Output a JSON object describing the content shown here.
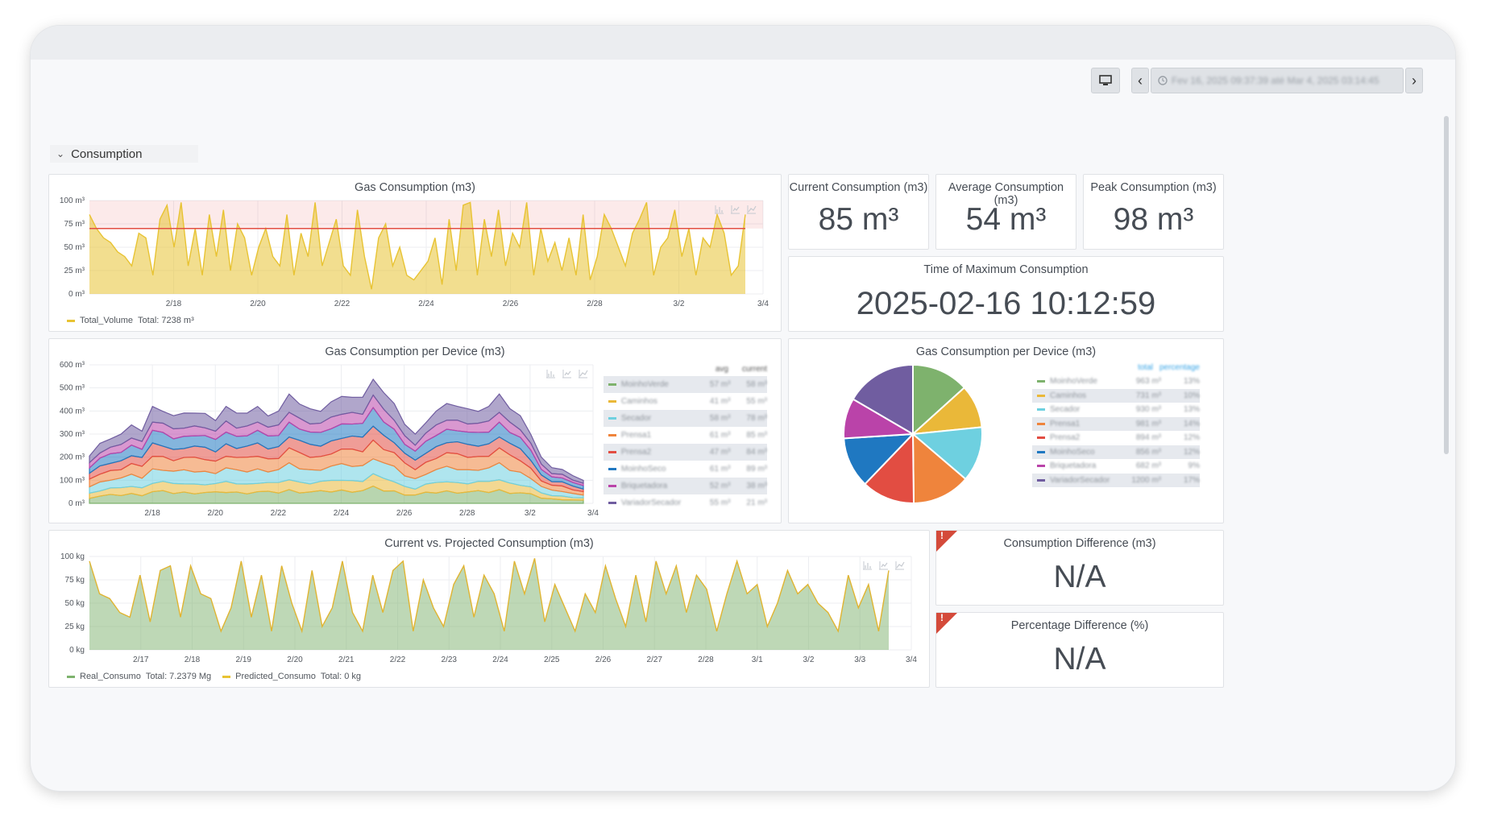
{
  "toolbar": {
    "time_range": "Fev 16, 2025 09:37:39 até Mar 4, 2025 03:14:45",
    "prev_icon": "‹",
    "next_icon": "›"
  },
  "row": {
    "title": "Consumption"
  },
  "panels": {
    "gas": {
      "title": "Gas Consumption (m3)",
      "legend_series": "Total_Volume",
      "legend_total": "Total: 7238 m³",
      "threshold": 70,
      "color": "#e8c333",
      "y_ticks": [
        "100 m³",
        "75 m³",
        "50 m³",
        "25 m³",
        "0 m³"
      ],
      "x_ticks": [
        "2/18",
        "2/20",
        "2/22",
        "2/24",
        "2/26",
        "2/28",
        "3/2",
        "3/4"
      ]
    },
    "current": {
      "title": "Current Consumption (m3)",
      "value": "85 m³"
    },
    "average": {
      "title": "Average Consumption (m3)",
      "value": "54 m³"
    },
    "peak": {
      "title": "Peak Consumption (m3)",
      "value": "98 m³"
    },
    "time_max": {
      "title": "Time of Maximum Consumption",
      "value": "2025-02-16 10:12:59"
    },
    "per_device": {
      "title": "Gas Consumption per Device (m3)",
      "y_ticks": [
        "600 m³",
        "500 m³",
        "400 m³",
        "300 m³",
        "200 m³",
        "100 m³",
        "0 m³"
      ],
      "x_ticks": [
        "2/18",
        "2/20",
        "2/22",
        "2/24",
        "2/26",
        "2/28",
        "3/2",
        "3/4"
      ],
      "legend_headers": [
        "avg",
        "current"
      ]
    },
    "pie": {
      "title": "Gas Consumption per Device (m3)",
      "legend_headers": [
        "total",
        "percentage"
      ]
    },
    "projected": {
      "title": "Current vs. Projected Consumption (m3)",
      "y_ticks": [
        "100 kg",
        "75 kg",
        "50 kg",
        "25 kg",
        "0 kg"
      ],
      "x_ticks": [
        "2/17",
        "2/18",
        "2/19",
        "2/20",
        "2/21",
        "2/22",
        "2/23",
        "2/24",
        "2/25",
        "2/26",
        "2/27",
        "2/28",
        "3/1",
        "3/2",
        "3/3",
        "3/4"
      ],
      "legend": [
        {
          "name": "Real_Consumo",
          "total": "Total: 7.2379 Mg",
          "color": "#7eb26d"
        },
        {
          "name": "Predicted_Consumo",
          "total": "Total: 0 kg",
          "color": "#e8c333"
        }
      ]
    },
    "diff": {
      "title": "Consumption Difference (m3)",
      "value": "N/A"
    },
    "pct": {
      "title": "Percentage Difference (%)",
      "value": "N/A"
    }
  },
  "devices": [
    {
      "name": "MoinhoVerde",
      "avg": "57 m³",
      "current": "58 m³",
      "total": "963 m³",
      "percentage": "13%",
      "color": "#7eb26d"
    },
    {
      "name": "Caminhos",
      "avg": "41 m³",
      "current": "55 m³",
      "total": "731 m³",
      "percentage": "10%",
      "color": "#eab839"
    },
    {
      "name": "Secador",
      "avg": "58 m³",
      "current": "78 m³",
      "total": "930 m³",
      "percentage": "13%",
      "color": "#6ed0e0"
    },
    {
      "name": "Prensa1",
      "avg": "61 m³",
      "current": "85 m³",
      "total": "981 m³",
      "percentage": "14%",
      "color": "#ef843c"
    },
    {
      "name": "Prensa2",
      "avg": "47 m³",
      "current": "84 m³",
      "total": "894 m³",
      "percentage": "12%",
      "color": "#e24d42"
    },
    {
      "name": "MoinhoSeco",
      "avg": "61 m³",
      "current": "89 m³",
      "total": "856 m³",
      "percentage": "12%",
      "color": "#1f78c1"
    },
    {
      "name": "Briquetadora",
      "avg": "52 m³",
      "current": "38 m³",
      "total": "682 m³",
      "percentage": "9%",
      "color": "#ba43a9"
    },
    {
      "name": "VariadorSecador",
      "avg": "55 m³",
      "current": "21 m³",
      "total": "1200 m³",
      "percentage": "17%",
      "color": "#705da0"
    }
  ],
  "chart_data": [
    {
      "type": "area",
      "title": "Gas Consumption (m3)",
      "series": [
        {
          "name": "Total_Volume",
          "values": [
            85,
            70,
            60,
            55,
            45,
            40,
            30,
            65,
            60,
            20,
            80,
            95,
            50,
            98,
            30,
            70,
            20,
            85,
            40,
            90,
            25,
            75,
            60,
            20,
            50,
            70,
            40,
            30,
            85,
            20,
            65,
            40,
            98,
            30,
            55,
            80,
            30,
            20,
            90,
            40,
            5,
            60,
            75,
            30,
            50,
            20,
            15,
            25,
            35,
            60,
            10,
            80,
            25,
            95,
            98,
            20,
            80,
            40,
            90,
            30,
            65,
            50,
            98,
            20,
            70,
            35,
            55,
            25,
            60,
            20,
            85,
            15,
            40,
            85,
            70,
            50,
            30,
            65,
            80,
            98,
            20,
            50,
            60,
            90,
            40,
            70,
            20,
            60,
            50,
            85,
            65,
            20,
            30,
            85
          ]
        }
      ],
      "ylim": [
        0,
        100
      ],
      "x_range": [
        "2/16",
        "3/4"
      ]
    },
    {
      "type": "area",
      "title": "Gas Consumption per Device (m3)",
      "stacked": true,
      "series_order": [
        "MoinhoVerde",
        "Caminhos",
        "Secador",
        "Prensa1",
        "Prensa2",
        "MoinhoSeco",
        "Briquetadora",
        "VariadorSecador"
      ],
      "ylim": [
        0,
        600
      ],
      "totals": [
        210,
        260,
        280,
        300,
        330,
        320,
        420,
        400,
        380,
        380,
        400,
        390,
        360,
        420,
        380,
        400,
        420,
        380,
        400,
        460,
        440,
        410,
        400,
        440,
        450,
        470,
        460,
        540,
        480,
        420,
        350,
        300,
        350,
        400,
        420,
        430,
        410,
        400,
        420,
        460,
        420,
        380,
        300,
        200,
        150,
        150,
        120,
        100
      ]
    },
    {
      "type": "pie",
      "title": "Gas Consumption per Device (m3)",
      "labels": [
        "MoinhoVerde",
        "Caminhos",
        "Secador",
        "Prensa1",
        "Prensa2",
        "MoinhoSeco",
        "Briquetadora",
        "VariadorSecador"
      ],
      "values": [
        963,
        731,
        930,
        981,
        894,
        856,
        682,
        1200
      ]
    },
    {
      "type": "area",
      "title": "Current vs. Projected Consumption (m3)",
      "series": [
        {
          "name": "Real_Consumo",
          "values": [
            95,
            60,
            55,
            40,
            35,
            80,
            30,
            85,
            90,
            35,
            90,
            60,
            55,
            20,
            45,
            95,
            35,
            80,
            20,
            90,
            50,
            20,
            85,
            25,
            45,
            95,
            40,
            20,
            80,
            40,
            85,
            95,
            20,
            75,
            45,
            25,
            70,
            90,
            35,
            80,
            60,
            20,
            95,
            60,
            98,
            30,
            70,
            45,
            20,
            60,
            40,
            90,
            55,
            25,
            80,
            30,
            95,
            60,
            90,
            40,
            80,
            65,
            20,
            60,
            95,
            60,
            70,
            25,
            50,
            85,
            60,
            70,
            50,
            40,
            20,
            80,
            45,
            70,
            20,
            85
          ]
        },
        {
          "name": "Predicted_Consumo",
          "values": [
            0
          ]
        }
      ],
      "ylim": [
        0,
        100
      ],
      "x_range": [
        "2/16",
        "3/4"
      ]
    }
  ]
}
